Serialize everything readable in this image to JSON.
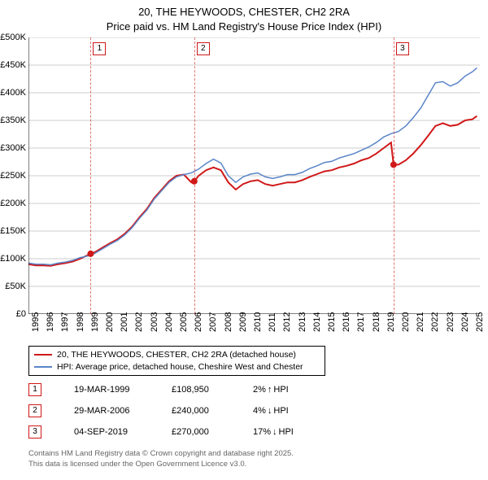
{
  "title": {
    "line1": "20, THE HEYWOODS, CHESTER, CH2 2RA",
    "line2": "Price paid vs. HM Land Registry's House Price Index (HPI)",
    "fontsize": 13,
    "color": "#000000"
  },
  "chart": {
    "type": "line",
    "background_color": "#ffffff",
    "gridline_color": "#999999",
    "axis_color": "#000000",
    "yaxis": {
      "min": 0,
      "max": 500000,
      "tick_step": 50000,
      "tick_labels": [
        "£0",
        "£50K",
        "£100K",
        "£150K",
        "£200K",
        "£250K",
        "£300K",
        "£350K",
        "£400K",
        "£450K",
        "£500K"
      ],
      "label_fontsize": 11
    },
    "xaxis": {
      "min": 1995,
      "max": 2025.5,
      "tick_step": 1,
      "tick_labels": [
        "1995",
        "1996",
        "1997",
        "1998",
        "1999",
        "2000",
        "2001",
        "2002",
        "2003",
        "2004",
        "2005",
        "2006",
        "2007",
        "2008",
        "2009",
        "2010",
        "2011",
        "2012",
        "2013",
        "2014",
        "2015",
        "2016",
        "2017",
        "2018",
        "2019",
        "2020",
        "2021",
        "2022",
        "2023",
        "2024",
        "2025"
      ],
      "label_fontsize": 11,
      "label_rotation_deg": -90
    },
    "series": [
      {
        "name": "20, THE HEYWOODS, CHESTER, CH2 2RA (detached house)",
        "color": "#d01818",
        "line_width": 2,
        "points": [
          [
            1995.0,
            90000
          ],
          [
            1995.5,
            88000
          ],
          [
            1996.0,
            88000
          ],
          [
            1996.5,
            87000
          ],
          [
            1997.0,
            90000
          ],
          [
            1997.5,
            92000
          ],
          [
            1998.0,
            95000
          ],
          [
            1998.5,
            100000
          ],
          [
            1999.2,
            108950
          ],
          [
            1999.5,
            112000
          ],
          [
            2000.0,
            120000
          ],
          [
            2000.5,
            128000
          ],
          [
            2001.0,
            135000
          ],
          [
            2001.5,
            145000
          ],
          [
            2002.0,
            158000
          ],
          [
            2002.5,
            175000
          ],
          [
            2003.0,
            190000
          ],
          [
            2003.5,
            210000
          ],
          [
            2004.0,
            225000
          ],
          [
            2004.5,
            240000
          ],
          [
            2005.0,
            250000
          ],
          [
            2005.5,
            252000
          ],
          [
            2006.0,
            238000
          ],
          [
            2006.2,
            240000
          ],
          [
            2006.5,
            250000
          ],
          [
            2007.0,
            260000
          ],
          [
            2007.5,
            265000
          ],
          [
            2008.0,
            260000
          ],
          [
            2008.5,
            238000
          ],
          [
            2009.0,
            225000
          ],
          [
            2009.5,
            235000
          ],
          [
            2010.0,
            240000
          ],
          [
            2010.5,
            242000
          ],
          [
            2011.0,
            235000
          ],
          [
            2011.5,
            232000
          ],
          [
            2012.0,
            235000
          ],
          [
            2012.5,
            238000
          ],
          [
            2013.0,
            238000
          ],
          [
            2013.5,
            242000
          ],
          [
            2014.0,
            248000
          ],
          [
            2014.5,
            253000
          ],
          [
            2015.0,
            258000
          ],
          [
            2015.5,
            260000
          ],
          [
            2016.0,
            265000
          ],
          [
            2016.5,
            268000
          ],
          [
            2017.0,
            272000
          ],
          [
            2017.5,
            278000
          ],
          [
            2018.0,
            282000
          ],
          [
            2018.5,
            290000
          ],
          [
            2019.0,
            300000
          ],
          [
            2019.5,
            310000
          ],
          [
            2019.67,
            270000
          ],
          [
            2020.0,
            270000
          ],
          [
            2020.5,
            278000
          ],
          [
            2021.0,
            290000
          ],
          [
            2021.5,
            305000
          ],
          [
            2022.0,
            322000
          ],
          [
            2022.5,
            340000
          ],
          [
            2023.0,
            345000
          ],
          [
            2023.5,
            340000
          ],
          [
            2024.0,
            342000
          ],
          [
            2024.5,
            350000
          ],
          [
            2025.0,
            352000
          ],
          [
            2025.3,
            358000
          ]
        ],
        "markers": [
          {
            "x": 1999.2,
            "y": 108950,
            "radius": 4
          },
          {
            "x": 2006.2,
            "y": 240000,
            "radius": 4
          },
          {
            "x": 2019.67,
            "y": 270000,
            "radius": 4
          }
        ]
      },
      {
        "name": "HPI: Average price, detached house, Cheshire West and Chester",
        "color": "#5a85c8",
        "line_width": 1.5,
        "points": [
          [
            1995.0,
            92000
          ],
          [
            1995.5,
            90000
          ],
          [
            1996.0,
            90000
          ],
          [
            1996.5,
            89000
          ],
          [
            1997.0,
            92000
          ],
          [
            1997.5,
            94000
          ],
          [
            1998.0,
            97000
          ],
          [
            1998.5,
            102000
          ],
          [
            1999.2,
            106000
          ],
          [
            1999.5,
            110000
          ],
          [
            2000.0,
            118000
          ],
          [
            2000.5,
            126000
          ],
          [
            2001.0,
            133000
          ],
          [
            2001.5,
            143000
          ],
          [
            2002.0,
            156000
          ],
          [
            2002.5,
            173000
          ],
          [
            2003.0,
            188000
          ],
          [
            2003.5,
            208000
          ],
          [
            2004.0,
            223000
          ],
          [
            2004.5,
            238000
          ],
          [
            2005.0,
            248000
          ],
          [
            2005.5,
            252000
          ],
          [
            2006.0,
            255000
          ],
          [
            2006.5,
            262000
          ],
          [
            2007.0,
            272000
          ],
          [
            2007.5,
            280000
          ],
          [
            2008.0,
            273000
          ],
          [
            2008.5,
            250000
          ],
          [
            2009.0,
            238000
          ],
          [
            2009.5,
            248000
          ],
          [
            2010.0,
            253000
          ],
          [
            2010.5,
            255000
          ],
          [
            2011.0,
            248000
          ],
          [
            2011.5,
            245000
          ],
          [
            2012.0,
            248000
          ],
          [
            2012.5,
            252000
          ],
          [
            2013.0,
            252000
          ],
          [
            2013.5,
            256000
          ],
          [
            2014.0,
            263000
          ],
          [
            2014.5,
            268000
          ],
          [
            2015.0,
            274000
          ],
          [
            2015.5,
            276000
          ],
          [
            2016.0,
            282000
          ],
          [
            2016.5,
            286000
          ],
          [
            2017.0,
            290000
          ],
          [
            2017.5,
            296000
          ],
          [
            2018.0,
            302000
          ],
          [
            2018.5,
            310000
          ],
          [
            2019.0,
            320000
          ],
          [
            2019.5,
            326000
          ],
          [
            2020.0,
            330000
          ],
          [
            2020.5,
            340000
          ],
          [
            2021.0,
            355000
          ],
          [
            2021.5,
            372000
          ],
          [
            2022.0,
            395000
          ],
          [
            2022.5,
            418000
          ],
          [
            2023.0,
            420000
          ],
          [
            2023.5,
            412000
          ],
          [
            2024.0,
            418000
          ],
          [
            2024.5,
            430000
          ],
          [
            2025.0,
            438000
          ],
          [
            2025.3,
            445000
          ]
        ]
      }
    ],
    "event_markers": {
      "line_color": "#d01818",
      "line_dash": "4,3",
      "box_border": "#d01818",
      "items": [
        {
          "index": "1",
          "x": 1999.2
        },
        {
          "index": "2",
          "x": 2006.2
        },
        {
          "index": "3",
          "x": 2019.67
        }
      ]
    }
  },
  "legend": {
    "border_color": "#000000",
    "fontsize": 10.5,
    "items": [
      {
        "color": "#d01818",
        "label": "20, THE HEYWOODS, CHESTER, CH2 2RA (detached house)"
      },
      {
        "color": "#5a85c8",
        "label": "HPI: Average price, detached house, Cheshire West and Chester"
      }
    ]
  },
  "sales": {
    "box_border": "#d01818",
    "fontsize": 11,
    "rows": [
      {
        "index": "1",
        "date": "19-MAR-1999",
        "price": "£108,950",
        "delta_pct": "2%",
        "arrow": "↑",
        "delta_label": "HPI"
      },
      {
        "index": "2",
        "date": "29-MAR-2006",
        "price": "£240,000",
        "delta_pct": "4%",
        "arrow": "↓",
        "delta_label": "HPI"
      },
      {
        "index": "3",
        "date": "04-SEP-2019",
        "price": "£270,000",
        "delta_pct": "17%",
        "arrow": "↓",
        "delta_label": "HPI"
      }
    ]
  },
  "footer": {
    "color": "#666666",
    "fontsize": 9.5,
    "line1": "Contains HM Land Registry data © Crown copyright and database right 2025.",
    "line2": "This data is licensed under the Open Government Licence v3.0."
  }
}
